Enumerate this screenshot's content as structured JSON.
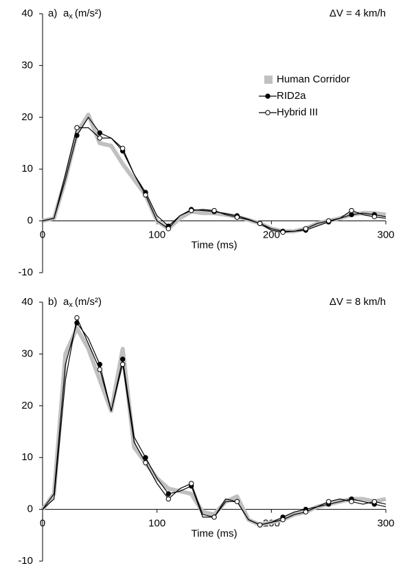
{
  "chart_data": [
    {
      "type": "line",
      "panel_label": "a)",
      "ylabel_main": "a",
      "ylabel_sub": "x",
      "ylabel_unit": "(m/s²)",
      "annotation": "ΔV = 4 km/h",
      "xlabel": "Time (ms)",
      "x": [
        0,
        10,
        20,
        30,
        40,
        50,
        60,
        70,
        80,
        90,
        100,
        110,
        120,
        130,
        140,
        150,
        160,
        170,
        180,
        190,
        200,
        210,
        220,
        230,
        240,
        250,
        260,
        270,
        280,
        290,
        300
      ],
      "xlim": [
        0,
        300
      ],
      "xticks": [
        0,
        100,
        200,
        300
      ],
      "ylim": [
        -10,
        40
      ],
      "yticks": [
        -10,
        0,
        10,
        20,
        30,
        40
      ],
      "legend": true,
      "series": [
        {
          "name": "Human Corridor",
          "color": "#c0c0c0",
          "marker": "none",
          "values": [
            0,
            0.5,
            8,
            17,
            20.5,
            15,
            14.5,
            11,
            8,
            5,
            0,
            -1.5,
            0.5,
            1.8,
            1.5,
            1.5,
            1.2,
            0.8,
            0.2,
            -0.5,
            -1.5,
            -2,
            -2,
            -1.5,
            -0.5,
            0,
            0.5,
            1.2,
            1.5,
            1.5,
            1.2
          ]
        },
        {
          "name": "RID2a",
          "color": "#000000",
          "marker": "filled",
          "values": [
            0,
            0.5,
            8,
            16.5,
            20,
            17,
            16,
            13.5,
            9,
            5.5,
            1,
            -1,
            1,
            2.2,
            2,
            1.8,
            1.4,
            1,
            0.3,
            -0.5,
            -1.5,
            -2,
            -2,
            -1.8,
            -1,
            -0.2,
            0.5,
            1.2,
            1.5,
            1.2,
            0.8
          ]
        },
        {
          "name": "Hybrid III",
          "color": "#000000",
          "marker": "open",
          "values": [
            0,
            0.5,
            9,
            18,
            18,
            16,
            16,
            14,
            9,
            5,
            0,
            -1.5,
            1,
            2,
            2.2,
            2,
            1.2,
            0.7,
            0.2,
            -0.5,
            -1.8,
            -2.2,
            -2,
            -1.5,
            -0.5,
            0,
            0.5,
            2,
            1.2,
            0.8,
            0.5
          ]
        }
      ]
    },
    {
      "type": "line",
      "panel_label": "b)",
      "ylabel_main": "a",
      "ylabel_sub": "x",
      "ylabel_unit": "(m/s²)",
      "annotation": "ΔV = 8 km/h",
      "xlabel": "Time (ms)",
      "x": [
        0,
        10,
        20,
        30,
        40,
        50,
        60,
        70,
        80,
        90,
        100,
        110,
        120,
        130,
        140,
        150,
        160,
        170,
        180,
        190,
        200,
        210,
        220,
        230,
        240,
        250,
        260,
        270,
        280,
        290,
        300
      ],
      "xlim": [
        0,
        300
      ],
      "xticks": [
        0,
        100,
        200,
        300
      ],
      "ylim": [
        -10,
        40
      ],
      "yticks": [
        -10,
        0,
        10,
        20,
        30,
        40
      ],
      "legend": false,
      "series": [
        {
          "color": "#c0c0c0",
          "marker": "none",
          "values": [
            0,
            3,
            30,
            35,
            31,
            25,
            19,
            31,
            12,
            9,
            6,
            4,
            3.5,
            3,
            -0.5,
            -1,
            1.5,
            2.5,
            -2,
            -3,
            -2.5,
            -2,
            -1,
            -0.5,
            0.5,
            1,
            1.5,
            2,
            2,
            1.5,
            2
          ]
        },
        {
          "color": "#000000",
          "marker": "filled",
          "values": [
            0,
            3,
            28,
            36,
            33,
            28,
            19,
            29,
            14,
            10,
            6,
            3,
            3.5,
            4.5,
            -1.5,
            -1.5,
            1.5,
            1.5,
            -2,
            -3,
            -2.5,
            -1.5,
            -0.5,
            0,
            0.5,
            1,
            1.5,
            2,
            1.5,
            1,
            0.5
          ]
        },
        {
          "color": "#000000",
          "marker": "open",
          "values": [
            0,
            2,
            25,
            37,
            32,
            27,
            19,
            28,
            13,
            9,
            5,
            2,
            4,
            5,
            -1,
            -1.5,
            2,
            1.5,
            -2,
            -3,
            -2.5,
            -2,
            -1,
            -0.5,
            0.5,
            1.5,
            2,
            1.5,
            1,
            1.5,
            1
          ]
        }
      ]
    }
  ]
}
